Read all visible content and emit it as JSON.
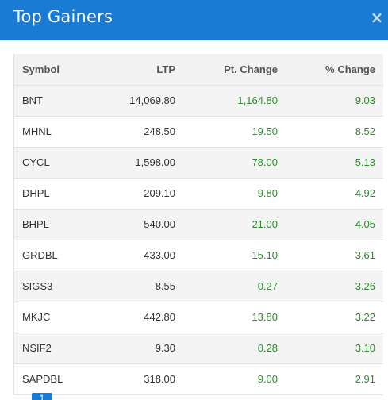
{
  "modal": {
    "title": "Top Gainers",
    "close_glyph": "×",
    "close_icon": "close-icon"
  },
  "table": {
    "headers": {
      "symbol": "Symbol",
      "ltp": "LTP",
      "pt_change": "Pt. Change",
      "pct_change": "% Change"
    },
    "rows": [
      {
        "symbol": "BNT",
        "ltp": "14,069.80",
        "pt_change": "1,164.80",
        "pct_change": "9.03"
      },
      {
        "symbol": "MHNL",
        "ltp": "248.50",
        "pt_change": "19.50",
        "pct_change": "8.52"
      },
      {
        "symbol": "CYCL",
        "ltp": "1,598.00",
        "pt_change": "78.00",
        "pct_change": "5.13"
      },
      {
        "symbol": "DHPL",
        "ltp": "209.10",
        "pt_change": "9.80",
        "pct_change": "4.92"
      },
      {
        "symbol": "BHPL",
        "ltp": "540.00",
        "pt_change": "21.00",
        "pct_change": "4.05"
      },
      {
        "symbol": "GRDBL",
        "ltp": "433.00",
        "pt_change": "15.10",
        "pct_change": "3.61"
      },
      {
        "symbol": "SIGS3",
        "ltp": "8.55",
        "pt_change": "0.27",
        "pct_change": "3.26"
      },
      {
        "symbol": "MKJC",
        "ltp": "442.80",
        "pt_change": "13.80",
        "pct_change": "3.22"
      },
      {
        "symbol": "NSIF2",
        "ltp": "9.30",
        "pt_change": "0.28",
        "pct_change": "3.10"
      },
      {
        "symbol": "SAPDBL",
        "ltp": "318.00",
        "pt_change": "9.00",
        "pct_change": "2.91"
      }
    ]
  },
  "pager": {
    "active_page": "1"
  },
  "colors": {
    "header_bg": "#1a7bd4",
    "gain_text": "#2e8b2e"
  }
}
